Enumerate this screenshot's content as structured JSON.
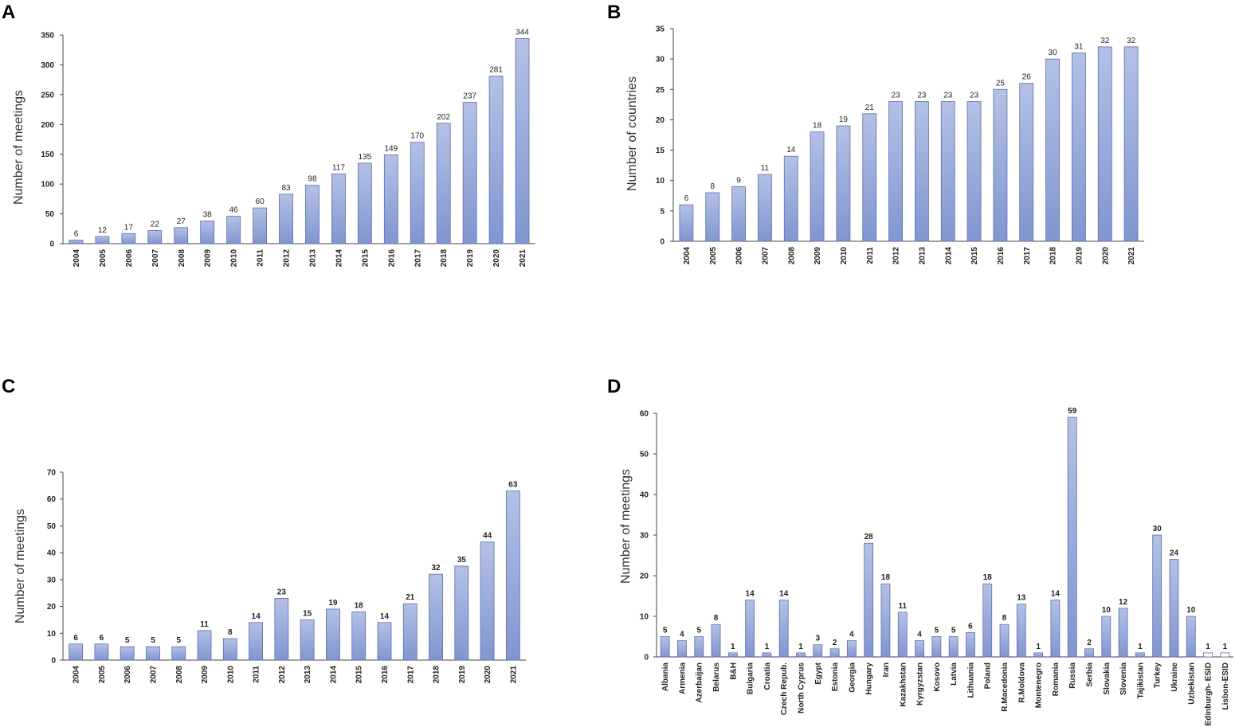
{
  "panels": {
    "A": "A",
    "B": "B",
    "C": "C",
    "D": "D"
  },
  "colors": {
    "bar_top": "#b4c1e6",
    "bar_bottom": "#8195d0",
    "bar_stroke": "#5a6fa8",
    "axis": "#444444"
  },
  "chart_data": [
    {
      "panel": "A",
      "type": "bar",
      "title": "",
      "xlabel": "",
      "ylabel": "Number of meetings",
      "ylim": [
        0,
        350
      ],
      "yticks": [
        0,
        50,
        100,
        150,
        200,
        250,
        300,
        350
      ],
      "categories": [
        "2004",
        "2005",
        "2006",
        "2007",
        "2008",
        "2009",
        "2010",
        "2011",
        "2012",
        "2013",
        "2014",
        "2015",
        "2016",
        "2017",
        "2018",
        "2019",
        "2020",
        "2021"
      ],
      "values": [
        6,
        12,
        17,
        22,
        27,
        38,
        46,
        60,
        83,
        98,
        117,
        135,
        149,
        170,
        202,
        237,
        281,
        344
      ]
    },
    {
      "panel": "B",
      "type": "bar",
      "title": "",
      "xlabel": "",
      "ylabel": "Number of countries",
      "ylim": [
        0,
        35
      ],
      "yticks": [
        0,
        5,
        10,
        15,
        20,
        25,
        30,
        35
      ],
      "categories": [
        "2004",
        "2005",
        "2006",
        "2007",
        "2008",
        "2009",
        "2010",
        "2011",
        "2012",
        "2013",
        "2014",
        "2015",
        "2016",
        "2017",
        "2018",
        "2019",
        "2020",
        "2021"
      ],
      "values": [
        6,
        8,
        9,
        11,
        14,
        18,
        19,
        21,
        23,
        23,
        23,
        23,
        25,
        26,
        30,
        31,
        32,
        32
      ]
    },
    {
      "panel": "C",
      "type": "bar",
      "title": "",
      "xlabel": "",
      "ylabel": "Number of meetings",
      "ylim": [
        0,
        70
      ],
      "yticks": [
        0,
        10,
        20,
        30,
        40,
        50,
        60,
        70
      ],
      "categories": [
        "2004",
        "2005",
        "2006",
        "2007",
        "2008",
        "2009",
        "2010",
        "2011",
        "2012",
        "2013",
        "2014",
        "2015",
        "2016",
        "2017",
        "2018",
        "2019",
        "2020",
        "2021"
      ],
      "values": [
        6,
        6,
        5,
        5,
        5,
        11,
        8,
        14,
        23,
        15,
        19,
        18,
        14,
        21,
        32,
        35,
        44,
        63
      ]
    },
    {
      "panel": "D",
      "type": "bar",
      "title": "",
      "xlabel": "",
      "ylabel": "Number of meetings",
      "ylim": [
        0,
        60
      ],
      "yticks": [
        0,
        10,
        20,
        30,
        40,
        50,
        60
      ],
      "categories": [
        "Albania",
        "Armenia",
        "Azerbaijan",
        "Belarus",
        "B&H",
        "Bulgaria",
        "Croatia",
        "Czech Repub.",
        "North Cyprus",
        "Egypt",
        "Estonia",
        "Georgia",
        "Hungary",
        "Iran",
        "Kazakhstan",
        "Kyrgyzstan",
        "Kosovo",
        "Latvia",
        "Lithuania",
        "Poland",
        "R.Macedonia",
        "R.Moldova",
        "Montenegro",
        "Romania",
        "Russia",
        "Serbia",
        "Slovakia",
        "Slovenia",
        "Tajikistan",
        "Turkey",
        "Ukraine",
        "Uzbekistan",
        "Edinburgh- ESID",
        "Lisbon-ESID"
      ],
      "values": [
        5,
        4,
        5,
        8,
        1,
        14,
        1,
        14,
        1,
        3,
        2,
        4,
        28,
        18,
        11,
        4,
        5,
        5,
        6,
        18,
        8,
        13,
        1,
        14,
        59,
        2,
        10,
        12,
        1,
        30,
        24,
        10,
        1,
        1
      ],
      "hollow": [
        "Edinburgh- ESID",
        "Lisbon-ESID"
      ]
    }
  ]
}
